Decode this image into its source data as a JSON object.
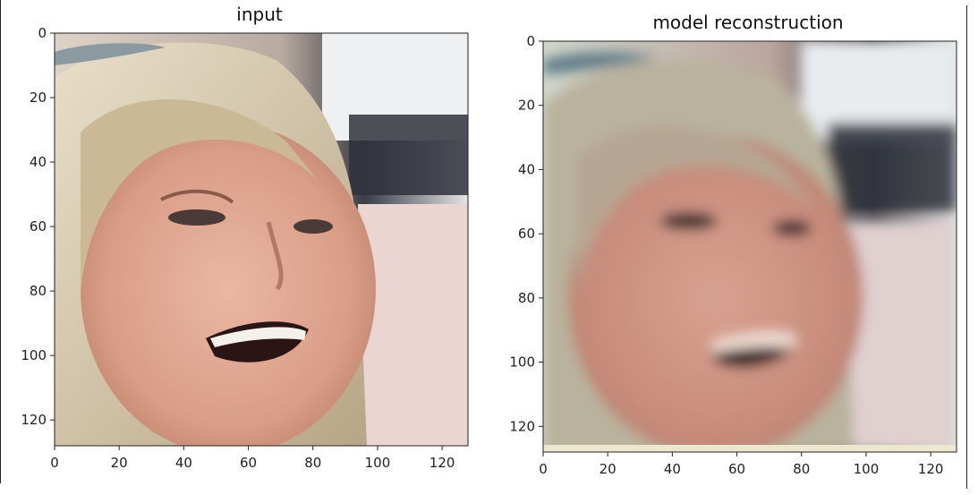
{
  "panels": [
    {
      "title": "input",
      "yticks": [
        "0",
        "20",
        "40",
        "60",
        "80",
        "100",
        "120"
      ],
      "xticks": [
        "0",
        "20",
        "40",
        "60",
        "80",
        "100",
        "120"
      ],
      "range": [
        0,
        128
      ]
    },
    {
      "title": "model reconstruction",
      "yticks": [
        "0",
        "20",
        "40",
        "60",
        "80",
        "100",
        "120"
      ],
      "xticks": [
        "0",
        "20",
        "40",
        "60",
        "80",
        "100",
        "120"
      ],
      "range": [
        0,
        128
      ]
    }
  ]
}
